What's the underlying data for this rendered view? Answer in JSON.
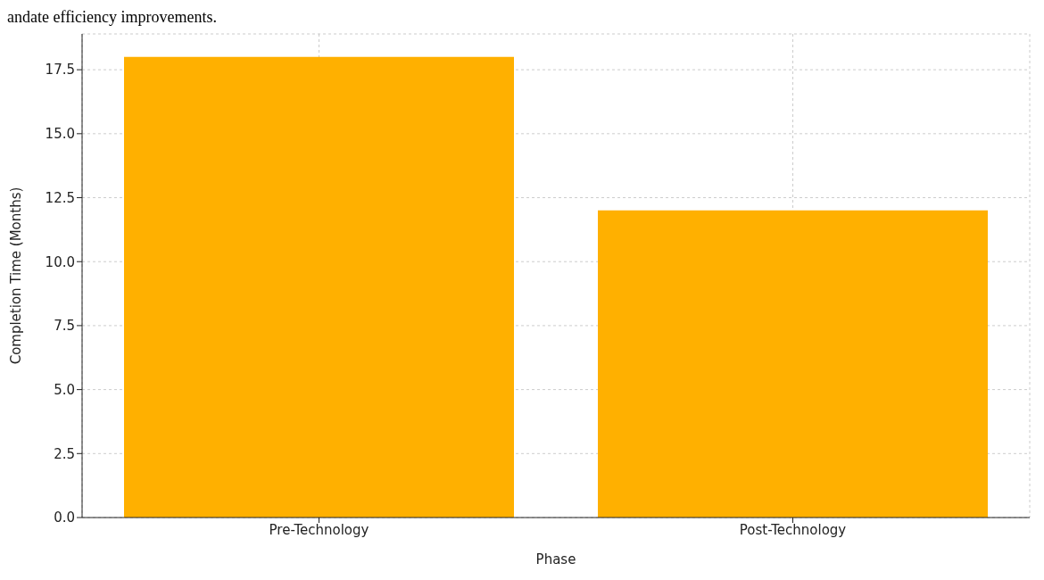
{
  "chart_data": {
    "type": "bar",
    "categories": [
      "Pre-Technology",
      "Post-Technology"
    ],
    "values": [
      18,
      12
    ],
    "color": "#ffb000",
    "xlabel": "Phase",
    "ylabel": "Completion Time (Months)",
    "ylim": [
      0,
      18.9
    ],
    "yticks": [
      {
        "value": 0,
        "label": "0.0"
      },
      {
        "value": 2.5,
        "label": "2.5"
      },
      {
        "value": 5,
        "label": "5.0"
      },
      {
        "value": 7.5,
        "label": "7.5"
      },
      {
        "value": 10,
        "label": "10.0"
      },
      {
        "value": 12.5,
        "label": "12.5"
      },
      {
        "value": 15,
        "label": "15.0"
      },
      {
        "value": 17.5,
        "label": "17.5"
      }
    ],
    "grid": true,
    "annotations": [
      "andate efficiency improvements."
    ]
  }
}
